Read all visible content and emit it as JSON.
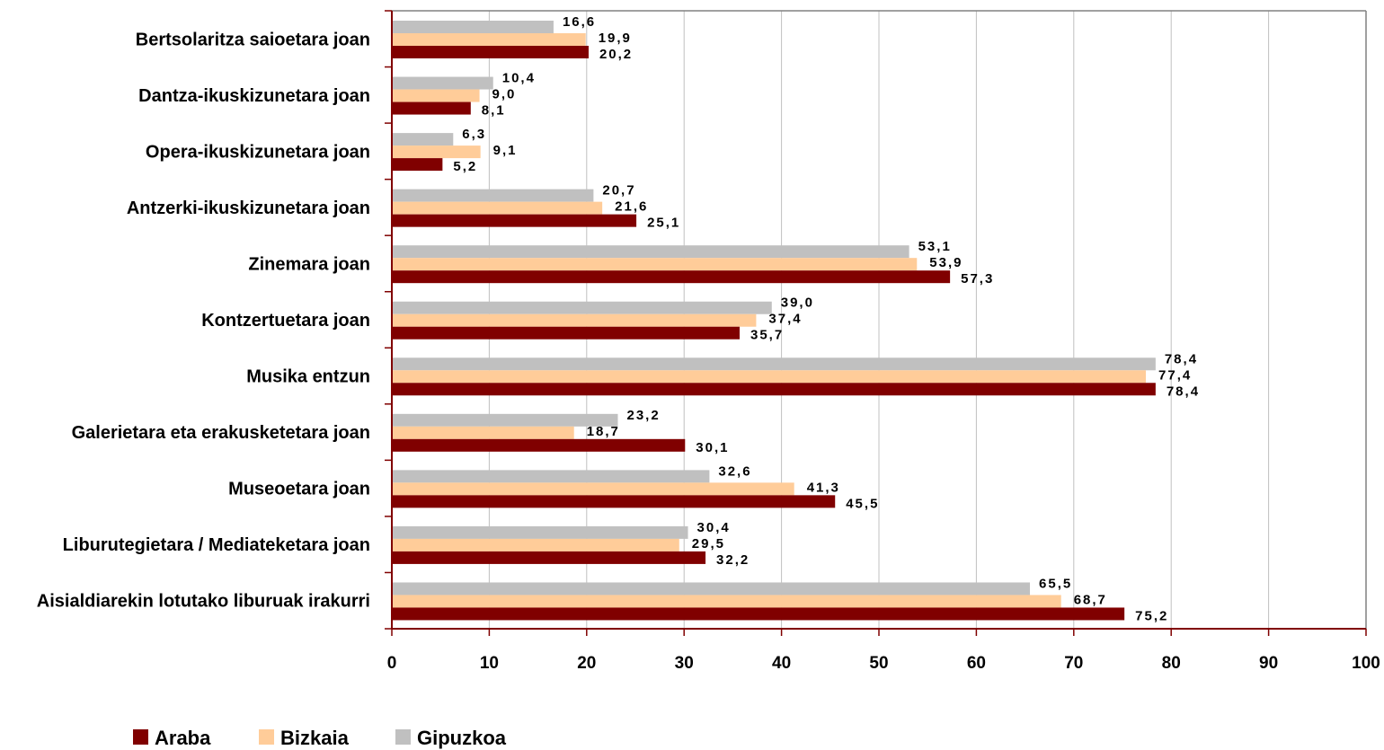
{
  "chart_data": {
    "type": "bar",
    "orientation": "horizontal",
    "title": "",
    "xlabel": "",
    "ylabel": "",
    "xlim": [
      0,
      100
    ],
    "x_ticks": [
      "0",
      "10",
      "20",
      "30",
      "40",
      "50",
      "60",
      "70",
      "80",
      "90",
      "100"
    ],
    "grid": "vertical",
    "legend_position": "bottom-left",
    "categories": [
      "Bertsolaritza saioetara joan",
      "Dantza-ikuskizunetara joan",
      "Opera-ikuskizunetara joan",
      "Antzerki-ikuskizunetara joan",
      "Zinemara joan",
      "Kontzertuetara joan",
      "Musika entzun",
      "Galerietara eta erakusketetara joan",
      "Museoetara joan",
      "Liburutegietara / Mediateketara joan",
      "Aisialdiarekin lotutako liburuak irakurri"
    ],
    "series": [
      {
        "name": "Gipuzkoa",
        "color": "#c0c0c0",
        "values": [
          16.6,
          10.4,
          6.3,
          20.7,
          53.1,
          39.0,
          78.4,
          23.2,
          32.6,
          30.4,
          65.5
        ],
        "labels": [
          "16,6",
          "10,4",
          "6,3",
          "20,7",
          "53,1",
          "39,0",
          "78,4",
          "23,2",
          "32,6",
          "30,4",
          "65,5"
        ]
      },
      {
        "name": "Bizkaia",
        "color": "#ffcc99",
        "values": [
          19.9,
          9.0,
          9.1,
          21.6,
          53.9,
          37.4,
          77.4,
          18.7,
          41.3,
          29.5,
          68.7
        ],
        "labels": [
          "19,9",
          "9,0",
          "9,1",
          "21,6",
          "53,9",
          "37,4",
          "77,4",
          "18,7",
          "41,3",
          "29,5",
          "68,7"
        ]
      },
      {
        "name": "Araba",
        "color": "#800000",
        "values": [
          20.2,
          8.1,
          5.2,
          25.1,
          57.3,
          35.7,
          78.4,
          30.1,
          45.5,
          32.2,
          75.2
        ],
        "labels": [
          "20,2",
          "8,1",
          "5,2",
          "25,1",
          "57,3",
          "35,7",
          "78,4",
          "30,1",
          "45,5",
          "32,2",
          "75,2"
        ]
      }
    ],
    "legend_order": [
      "Araba",
      "Bizkaia",
      "Gipuzkoa"
    ],
    "axis_color": "#800000",
    "grid_color": "#c0c0c0"
  }
}
